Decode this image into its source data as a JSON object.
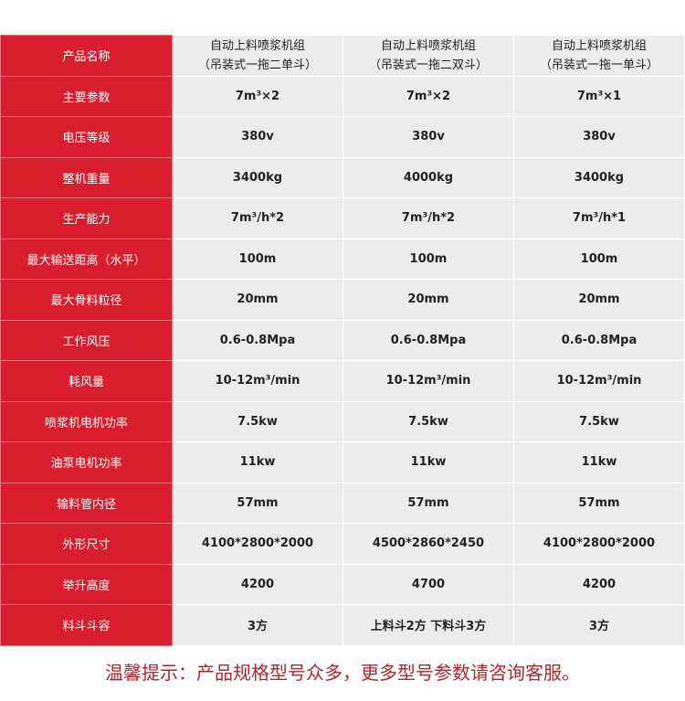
{
  "header": {
    "label": "产品名称",
    "products": [
      [
        "自动上料喷浆机组",
        "（吊装式一拖二单斗）"
      ],
      [
        "自动上料喷浆机组",
        "（吊装式一拖二双斗）"
      ],
      [
        "自动上料喷浆机组",
        "（吊装式一拖一单斗）"
      ]
    ]
  },
  "rows": [
    {
      "label": "主要参数",
      "values": [
        "7m³×2",
        "7m³×2",
        "7m³×1"
      ]
    },
    {
      "label": "电压等级",
      "values": [
        "380v",
        "380v",
        "380v"
      ]
    },
    {
      "label": "整机重量",
      "values": [
        "3400kg",
        "4000kg",
        "3400kg"
      ]
    },
    {
      "label": "生产能力",
      "values": [
        "7m³/h*2",
        "7m³/h*2",
        "7m³/h*1"
      ]
    },
    {
      "label": "最大输送距离（水平）",
      "values": [
        "100m",
        "100m",
        "100m"
      ]
    },
    {
      "label": "最大骨料粒径",
      "values": [
        "20mm",
        "20mm",
        "20mm"
      ]
    },
    {
      "label": "工作风压",
      "values": [
        "0.6-0.8Mpa",
        "0.6-0.8Mpa",
        "0.6-0.8Mpa"
      ]
    },
    {
      "label": "耗风量",
      "values": [
        "10-12m³/min",
        "10-12m³/min",
        "10-12m³/min"
      ]
    },
    {
      "label": "喷浆机电机功率",
      "values": [
        "7.5kw",
        "7.5kw",
        "7.5kw"
      ]
    },
    {
      "label": "油泵电机功率",
      "values": [
        "11kw",
        "11kw",
        "11kw"
      ]
    },
    {
      "label": "输料管内径",
      "values": [
        "57mm",
        "57mm",
        "57mm"
      ]
    },
    {
      "label": "外形尺寸",
      "values": [
        "4100*2800*2000",
        "4500*2860*2450",
        "4100*2800*2000"
      ]
    },
    {
      "label": "举升高度",
      "values": [
        "4200",
        "4700",
        "4200"
      ]
    },
    {
      "label": "料斗斗容",
      "values": [
        "3方",
        "上料斗2方 下料斗3方",
        "3方"
      ]
    }
  ],
  "footer": {
    "tip": "温馨提示：产品规格型号众多，更多型号参数请咨询客服。"
  },
  "colors": {
    "label_bg": "#d81e2c",
    "cell_bg": "#ececec",
    "tip": "#b2242b"
  }
}
